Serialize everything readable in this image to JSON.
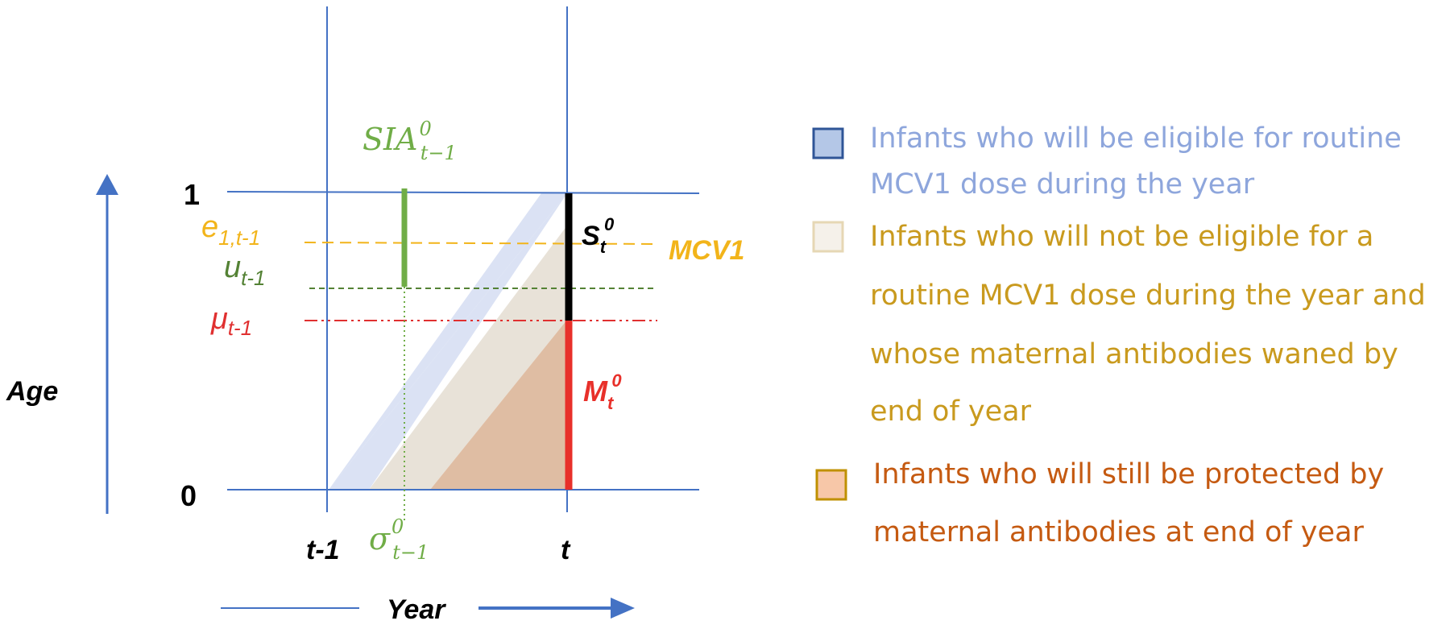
{
  "diagram": {
    "axis_labels": {
      "age": "Age",
      "year": "Year",
      "age_0": "0",
      "age_1": "1",
      "t_minus_1": "t-1",
      "t": "t"
    },
    "line_labels": {
      "e_main": "e",
      "e_sub": "1,t-1",
      "u_main": "u",
      "u_sub": "t-1",
      "mu_main": "μ",
      "mu_sub": "t-1",
      "mcv1": "MCV1"
    },
    "sia": {
      "main": "SIA",
      "sup": "0",
      "sub": "t−1"
    },
    "sigma": {
      "main": "σ",
      "sup": "0",
      "sub": "t−1"
    },
    "s_label": {
      "main": "S",
      "sub": "t",
      "sup": "0"
    },
    "m_label": {
      "main": "M",
      "sub": "t",
      "sup": "0"
    }
  },
  "legend": [
    {
      "lines": [
        "Infants who will be eligible for routine",
        "MCV1 dose during the year"
      ],
      "color": "#8ea6dc",
      "swatch_fill": "#b4c7e7",
      "swatch_border": "#2f5597"
    },
    {
      "lines": [
        "Infants who will not be eligible for a",
        "routine MCV1 dose during the year and",
        "whose maternal antibodies waned by",
        "end of year"
      ],
      "color": "#c99a1e",
      "swatch_fill": "#f5f1ea",
      "swatch_border": "#e6d7b4"
    },
    {
      "lines": [
        "Infants who will still be protected by",
        "maternal antibodies at end of year"
      ],
      "color": "#c55a11",
      "swatch_fill": "#f7c7a8",
      "swatch_border": "#bf9000"
    }
  ],
  "colors": {
    "axis": "#4472c4",
    "region_blue": "#dbe2f4",
    "region_beige": "#e8e2d8",
    "region_orange": "#dfbda3",
    "sia": "#70ad47",
    "u_line": "#548235",
    "mu_line": "#e03030",
    "e_line": "#f2b41a",
    "s_bar": "#000000",
    "m_bar": "#e8302a"
  }
}
